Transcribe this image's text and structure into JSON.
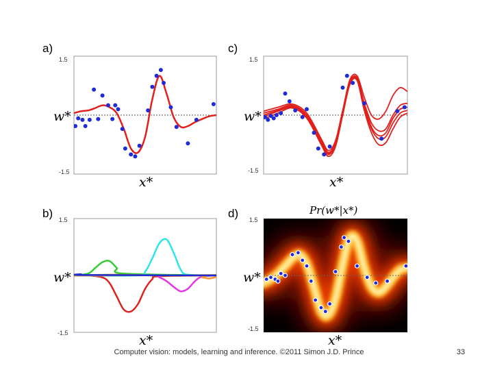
{
  "slide": {
    "footer": "Computer vision: models, learning and inference.  ©2011 Simon J.D. Prince",
    "page_number": "33"
  },
  "colors": {
    "curve": "#e0201c",
    "dots": "#1f2bd6",
    "baseline": "#555555",
    "heat_dark": "#000000",
    "heat_mid": "#e23a00",
    "heat_bright": "#fff6b0"
  },
  "chart_data": [
    {
      "panel": "a)",
      "type": "line",
      "description_of_series": [
        "posterior mean prediction"
      ],
      "xlabel": "x*",
      "ylabel": "w*",
      "ylim": [
        -1.5,
        1.5
      ],
      "xlim": [
        0,
        1
      ],
      "ytick_labels": [
        "1.5",
        "-1.5"
      ],
      "series": [
        {
          "name": "mean",
          "x": [
            0.0,
            0.05,
            0.1,
            0.15,
            0.2,
            0.25,
            0.3,
            0.35,
            0.4,
            0.45,
            0.5,
            0.55,
            0.6,
            0.65,
            0.7,
            0.75,
            0.8,
            0.85,
            0.9,
            0.95,
            1.0
          ],
          "y": [
            0.05,
            0.1,
            0.12,
            0.18,
            0.25,
            0.2,
            0.05,
            -0.35,
            -0.85,
            -0.95,
            -0.55,
            0.4,
            1.0,
            0.55,
            -0.05,
            -0.3,
            -0.28,
            -0.18,
            -0.1,
            -0.03,
            0.0
          ]
        }
      ],
      "points": {
        "x": [
          0.01,
          0.03,
          0.06,
          0.08,
          0.11,
          0.14,
          0.17,
          0.2,
          0.24,
          0.27,
          0.29,
          0.31,
          0.34,
          0.36,
          0.4,
          0.43,
          0.46,
          0.52,
          0.55,
          0.58,
          0.61,
          0.63,
          0.68,
          0.72,
          0.8,
          0.86,
          0.98
        ],
        "y": [
          -0.28,
          -0.08,
          -0.12,
          -0.28,
          -0.12,
          0.65,
          -0.1,
          0.5,
          0.25,
          -0.1,
          0.25,
          0.15,
          -0.35,
          -0.85,
          -1.0,
          -1.05,
          -0.78,
          0.12,
          0.72,
          1.0,
          1.15,
          0.82,
          0.2,
          -0.3,
          -0.72,
          -0.12,
          0.28
        ]
      }
    },
    {
      "panel": "b)",
      "type": "line",
      "xlabel": "x*",
      "ylabel": "w*",
      "ylim": [
        -1.5,
        1.5
      ],
      "xlim": [
        0,
        1
      ],
      "ytick_labels": [
        "1.5",
        "-1.5"
      ],
      "series": [
        {
          "name": "red",
          "color": "#e0201c",
          "x": [
            0.0,
            0.1,
            0.2,
            0.25,
            0.3,
            0.35,
            0.4,
            0.45,
            0.5,
            0.55,
            0.6,
            1.0
          ],
          "y": [
            0.02,
            0.0,
            -0.05,
            -0.2,
            -0.55,
            -0.9,
            -0.95,
            -0.75,
            -0.35,
            -0.1,
            -0.02,
            0.0
          ]
        },
        {
          "name": "green",
          "color": "#33cc33",
          "x": [
            0.0,
            0.1,
            0.15,
            0.2,
            0.25,
            0.3,
            0.35,
            1.0
          ],
          "y": [
            0.0,
            0.05,
            0.2,
            0.35,
            0.38,
            0.2,
            0.05,
            0.0
          ]
        },
        {
          "name": "cyan",
          "color": "#2ee6e6",
          "x": [
            0.0,
            0.45,
            0.5,
            0.55,
            0.6,
            0.65,
            0.7,
            0.75,
            0.8,
            1.0
          ],
          "y": [
            0.0,
            0.0,
            0.1,
            0.45,
            0.85,
            0.95,
            0.6,
            0.15,
            0.02,
            0.0
          ]
        },
        {
          "name": "magenta",
          "color": "#e633e6",
          "x": [
            0.0,
            0.55,
            0.6,
            0.65,
            0.7,
            0.75,
            0.8,
            0.85,
            0.9,
            1.0
          ],
          "y": [
            0.0,
            0.0,
            -0.05,
            -0.15,
            -0.3,
            -0.42,
            -0.35,
            -0.15,
            -0.03,
            0.0
          ]
        },
        {
          "name": "orange",
          "color": "#ff9933",
          "x": [
            0.0,
            0.85,
            0.9,
            0.95,
            1.0
          ],
          "y": [
            0.0,
            0.0,
            -0.05,
            -0.08,
            -0.04
          ]
        },
        {
          "name": "olive",
          "color": "#a08a2a",
          "x": [
            0.0,
            0.3,
            0.6,
            1.0
          ],
          "y": [
            0.0,
            0.02,
            0.0,
            0.01
          ]
        },
        {
          "name": "blue",
          "color": "#1f2bd6",
          "x": [
            0.0,
            0.05,
            0.1,
            1.0
          ],
          "y": [
            0.02,
            0.03,
            0.01,
            0.0
          ]
        }
      ]
    },
    {
      "panel": "c)",
      "type": "line",
      "xlabel": "x*",
      "ylabel": "w*",
      "ylim": [
        -1.5,
        1.5
      ],
      "xlim": [
        0,
        1
      ],
      "ytick_labels": [
        "1.5",
        "-1.5"
      ],
      "series": [
        {
          "name": "sample 1",
          "x": [
            0.0,
            0.1,
            0.2,
            0.3,
            0.4,
            0.45,
            0.5,
            0.55,
            0.6,
            0.65,
            0.7,
            0.75,
            0.8,
            0.85,
            0.9,
            0.95,
            1.0
          ],
          "y": [
            0.05,
            0.15,
            0.25,
            0.0,
            -0.65,
            -0.95,
            -0.7,
            0.1,
            0.85,
            0.95,
            0.3,
            -0.2,
            -0.4,
            -0.35,
            0.0,
            0.25,
            0.3
          ]
        },
        {
          "name": "sample 2",
          "x": [
            0.0,
            0.1,
            0.2,
            0.3,
            0.4,
            0.45,
            0.5,
            0.55,
            0.6,
            0.65,
            0.7,
            0.75,
            0.8,
            0.85,
            0.9,
            0.95,
            1.0
          ],
          "y": [
            -0.05,
            0.1,
            0.2,
            -0.05,
            -0.7,
            -1.0,
            -0.75,
            0.05,
            0.8,
            0.9,
            0.2,
            -0.35,
            -0.6,
            -0.55,
            -0.2,
            0.05,
            0.12
          ]
        },
        {
          "name": "sample 3",
          "x": [
            0.0,
            0.1,
            0.2,
            0.3,
            0.4,
            0.45,
            0.5,
            0.55,
            0.6,
            0.65,
            0.7,
            0.75,
            0.8,
            0.85,
            0.9,
            0.95,
            1.0
          ],
          "y": [
            0.0,
            0.12,
            0.22,
            -0.02,
            -0.68,
            -0.98,
            -0.72,
            0.05,
            0.82,
            0.92,
            0.25,
            -0.3,
            -0.52,
            -0.45,
            -0.08,
            0.15,
            0.2
          ]
        },
        {
          "name": "sample 4",
          "x": [
            0.0,
            0.1,
            0.2,
            0.3,
            0.4,
            0.45,
            0.5,
            0.55,
            0.6,
            0.65,
            0.7,
            0.75,
            0.8,
            0.85,
            0.9,
            0.95,
            1.0
          ],
          "y": [
            -0.1,
            0.05,
            0.18,
            -0.08,
            -0.75,
            -1.05,
            -0.8,
            0.0,
            0.78,
            0.88,
            0.12,
            -0.45,
            -0.75,
            -0.7,
            -0.35,
            -0.05,
            0.05
          ]
        },
        {
          "name": "sample 5",
          "x": [
            0.0,
            0.1,
            0.2,
            0.3,
            0.4,
            0.45,
            0.5,
            0.55,
            0.6,
            0.65,
            0.7,
            0.75,
            0.8,
            0.85,
            0.9,
            0.95,
            1.0
          ],
          "y": [
            0.1,
            0.2,
            0.28,
            0.05,
            -0.6,
            -0.9,
            -0.65,
            0.12,
            0.9,
            1.0,
            0.45,
            0.0,
            -0.1,
            0.1,
            0.5,
            0.7,
            0.6
          ]
        }
      ],
      "points": {
        "x": [
          0.01,
          0.03,
          0.05,
          0.07,
          0.09,
          0.12,
          0.15,
          0.18,
          0.22,
          0.27,
          0.3,
          0.35,
          0.38,
          0.42,
          0.46,
          0.55,
          0.58,
          0.62,
          0.7,
          0.82,
          0.93,
          0.98
        ],
        "y": [
          -0.05,
          -0.12,
          -0.02,
          -0.08,
          0.0,
          0.05,
          0.55,
          0.35,
          0.12,
          -0.05,
          0.15,
          -0.45,
          -0.85,
          -1.0,
          -0.8,
          0.7,
          1.0,
          0.82,
          0.3,
          -0.6,
          0.1,
          0.2
        ]
      }
    },
    {
      "panel": "d)",
      "type": "heatmap",
      "title": "Pr(w*|x*)",
      "xlabel": "x*",
      "ylabel": "w*",
      "ylim": [
        -1.5,
        1.5
      ],
      "xlim": [
        0,
        1
      ],
      "ytick_labels": [
        "1.5",
        "-1.5"
      ],
      "mean": {
        "x": [
          0.0,
          0.05,
          0.1,
          0.15,
          0.2,
          0.25,
          0.3,
          0.35,
          0.4,
          0.45,
          0.5,
          0.55,
          0.6,
          0.65,
          0.7,
          0.75,
          0.8,
          0.85,
          0.9,
          0.95,
          1.0
        ],
        "y": [
          -0.2,
          -0.1,
          0.05,
          0.25,
          0.45,
          0.55,
          0.3,
          -0.3,
          -0.95,
          -1.05,
          -0.6,
          0.3,
          1.0,
          0.9,
          0.2,
          -0.3,
          -0.45,
          -0.3,
          -0.05,
          0.15,
          0.2
        ]
      },
      "points": {
        "x": [
          0.02,
          0.05,
          0.08,
          0.1,
          0.12,
          0.15,
          0.2,
          0.24,
          0.27,
          0.3,
          0.33,
          0.36,
          0.4,
          0.43,
          0.46,
          0.5,
          0.54,
          0.56,
          0.59,
          0.65,
          0.72,
          0.78,
          0.86,
          0.99
        ],
        "y": [
          -0.1,
          -0.05,
          -0.1,
          -0.15,
          0.05,
          0.0,
          0.55,
          0.6,
          0.4,
          0.25,
          -0.15,
          -0.65,
          -0.85,
          -0.95,
          -0.75,
          0.1,
          0.75,
          1.0,
          0.9,
          0.25,
          -0.05,
          -0.2,
          -0.15,
          0.25
        ]
      }
    }
  ]
}
